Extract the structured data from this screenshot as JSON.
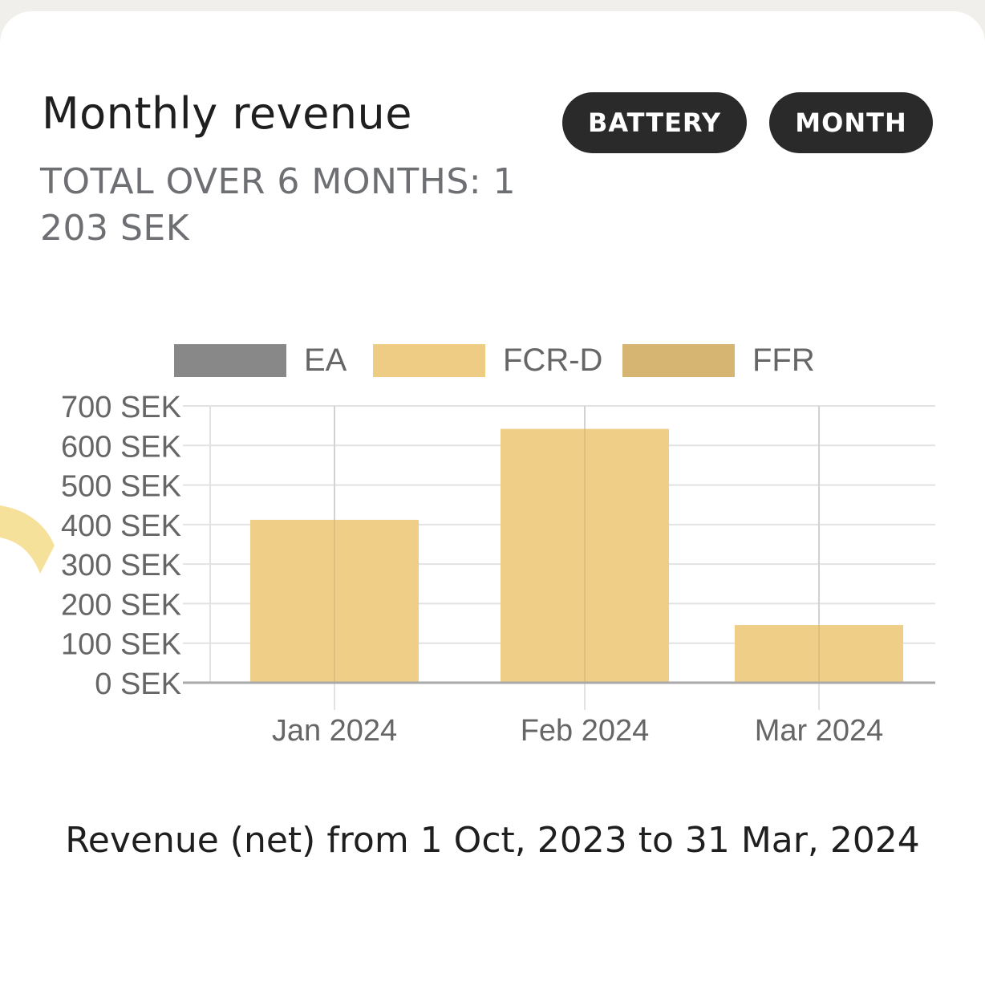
{
  "header": {
    "title": "Monthly revenue",
    "subtitle": "TOTAL OVER 6 MONTHS: 1 203 SEK"
  },
  "buttons": {
    "battery_label": "BATTERY",
    "month_label": "MONTH"
  },
  "footer": {
    "text": "Revenue (net) from 1 Oct, 2023 to 31 Mar, 2024"
  },
  "colors": {
    "EA": "#888888",
    "FCR-D": "#eecc84",
    "FFR": "#d6b572"
  },
  "chart_data": {
    "type": "bar",
    "stacked": true,
    "categories": [
      "Jan 2024",
      "Feb 2024",
      "Mar 2024"
    ],
    "series": [
      {
        "name": "EA",
        "values": [
          0,
          0,
          0
        ]
      },
      {
        "name": "FCR-D",
        "values": [
          412,
          642,
          146
        ]
      },
      {
        "name": "FFR",
        "values": [
          0,
          0,
          0
        ]
      }
    ],
    "ylim": [
      0,
      700
    ],
    "yticks": [
      0,
      100,
      200,
      300,
      400,
      500,
      600,
      700
    ],
    "ytick_suffix": " SEK",
    "grid": true,
    "legend": "top"
  }
}
